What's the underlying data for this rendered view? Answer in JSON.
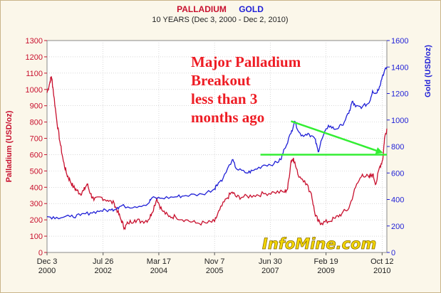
{
  "colors": {
    "palladium": "#c8102e",
    "gold": "#1f1fd6",
    "annotation": "#ee1c24",
    "arrow": "#33ee33",
    "watermark": "#f5d800",
    "grid": "#c0c0c0"
  },
  "chart_data": {
    "type": "line",
    "title_parts": [
      "PALLADIUM",
      "GOLD"
    ],
    "subtitle": "10 YEARS (Dec 3, 2000 - Dec 2, 2010)",
    "y_left_label": "Palladium (USD/oz)",
    "y_right_label": "Gold (USD/oz)",
    "y_left_range": [
      0,
      1300
    ],
    "y_right_range": [
      0,
      1600
    ],
    "x_range": [
      2000.92,
      2010.92
    ],
    "y_left_ticks": [
      0,
      100,
      200,
      300,
      400,
      500,
      600,
      700,
      800,
      900,
      1000,
      1100,
      1200,
      1300
    ],
    "y_right_ticks": [
      0,
      200,
      400,
      600,
      800,
      1000,
      1200,
      1400,
      1600
    ],
    "x_ticks": [
      {
        "x": 2000.92,
        "top": "Dec 3",
        "bottom": "2000"
      },
      {
        "x": 2002.57,
        "top": "Jul 26",
        "bottom": "2002"
      },
      {
        "x": 2004.21,
        "top": "Mar 17",
        "bottom": "2004"
      },
      {
        "x": 2005.85,
        "top": "Nov 7",
        "bottom": "2005"
      },
      {
        "x": 2007.49,
        "top": "Jun 30",
        "bottom": "2007"
      },
      {
        "x": 2009.13,
        "top": "Feb 19",
        "bottom": "2009"
      },
      {
        "x": 2010.78,
        "top": "Oct 12",
        "bottom": "2010"
      }
    ],
    "grid": true,
    "series": [
      {
        "name": "PALLADIUM",
        "axis": "left",
        "x": [
          2000.92,
          2001.0,
          2001.05,
          2001.1,
          2001.2,
          2001.3,
          2001.4,
          2001.5,
          2001.6,
          2001.7,
          2001.8,
          2001.9,
          2002.0,
          2002.1,
          2002.2,
          2002.3,
          2002.5,
          2002.7,
          2002.9,
          2003.0,
          2003.1,
          2003.2,
          2003.3,
          2003.5,
          2003.7,
          2003.9,
          2004.0,
          2004.15,
          2004.3,
          2004.5,
          2004.7,
          2005.0,
          2005.3,
          2005.6,
          2005.85,
          2006.0,
          2006.2,
          2006.37,
          2006.5,
          2006.7,
          2007.0,
          2007.3,
          2007.6,
          2007.9,
          2008.0,
          2008.1,
          2008.17,
          2008.3,
          2008.5,
          2008.7,
          2008.8,
          2008.9,
          2009.0,
          2009.2,
          2009.4,
          2009.6,
          2009.8,
          2010.0,
          2010.2,
          2010.4,
          2010.5,
          2010.6,
          2010.7,
          2010.8,
          2010.85,
          2010.92
        ],
        "values": [
          980,
          1040,
          1080,
          1000,
          820,
          680,
          560,
          480,
          440,
          400,
          380,
          360,
          380,
          420,
          360,
          320,
          340,
          320,
          300,
          250,
          200,
          150,
          180,
          200,
          190,
          200,
          240,
          330,
          260,
          220,
          220,
          200,
          180,
          180,
          190,
          260,
          330,
          370,
          340,
          340,
          350,
          360,
          370,
          370,
          390,
          560,
          580,
          480,
          440,
          360,
          240,
          190,
          180,
          190,
          210,
          240,
          270,
          400,
          480,
          460,
          480,
          420,
          520,
          570,
          700,
          760
        ]
      },
      {
        "name": "GOLD",
        "axis": "right",
        "x": [
          2000.92,
          2001.2,
          2001.6,
          2001.9,
          2002.2,
          2002.5,
          2002.8,
          2003.0,
          2003.1,
          2003.5,
          2003.9,
          2004.0,
          2004.3,
          2004.7,
          2005.0,
          2005.5,
          2005.85,
          2005.9,
          2006.1,
          2006.37,
          2006.5,
          2006.8,
          2007.0,
          2007.3,
          2007.6,
          2007.8,
          2007.9,
          2008.1,
          2008.2,
          2008.4,
          2008.6,
          2008.8,
          2008.9,
          2009.0,
          2009.2,
          2009.4,
          2009.6,
          2009.8,
          2009.9,
          2010.0,
          2010.2,
          2010.4,
          2010.5,
          2010.6,
          2010.7,
          2010.8,
          2010.92
        ],
        "values": [
          270,
          265,
          270,
          280,
          300,
          315,
          320,
          340,
          350,
          345,
          370,
          410,
          410,
          420,
          430,
          440,
          480,
          510,
          560,
          700,
          630,
          600,
          620,
          660,
          670,
          700,
          780,
          900,
          990,
          880,
          900,
          860,
          760,
          850,
          960,
          930,
          960,
          1050,
          1140,
          1100,
          1100,
          1130,
          1220,
          1200,
          1250,
          1340,
          1400
        ]
      }
    ],
    "annotations": {
      "callout_lines": [
        "Major Palladium",
        "Breakout",
        "less than 3",
        "months ago"
      ],
      "watermark": "InfoMine.com",
      "breakout_line": {
        "axis": "left",
        "y": 600,
        "x_start": 2007.2,
        "x_end": 2010.92
      },
      "trend_arrow": {
        "axis": "left",
        "from": [
          2008.1,
          805
        ],
        "to": [
          2010.75,
          615
        ]
      }
    }
  }
}
